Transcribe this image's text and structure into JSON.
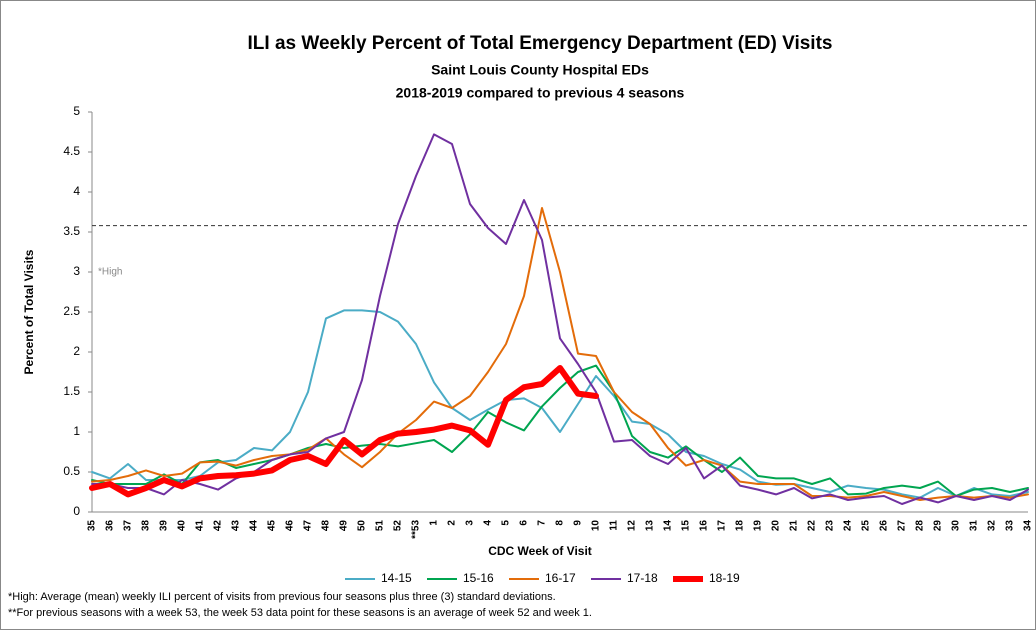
{
  "chart_data": {
    "type": "line",
    "title": "ILI as Weekly Percent of Total Emergency Department (ED) Visits",
    "subtitle": "Saint Louis County Hospital EDs",
    "subtitle2": "2018-2019 compared to previous 4 seasons",
    "y_label": "Percent of Total Visits",
    "x_label": "CDC Week of Visit",
    "categories": [
      "35",
      "36",
      "37",
      "38",
      "39",
      "40",
      "41",
      "42",
      "43",
      "44",
      "45",
      "46",
      "47",
      "48",
      "49",
      "50",
      "51",
      "52",
      "**53",
      "1",
      "2",
      "3",
      "4",
      "5",
      "6",
      "7",
      "8",
      "9",
      "10",
      "11",
      "12",
      "13",
      "14",
      "15",
      "16",
      "17",
      "18",
      "19",
      "20",
      "21",
      "22",
      "23",
      "24",
      "25",
      "26",
      "27",
      "28",
      "29",
      "30",
      "31",
      "32",
      "33",
      "34"
    ],
    "ylim": [
      0,
      5
    ],
    "yticks": [
      0,
      0.5,
      1,
      1.5,
      2,
      2.5,
      3,
      3.5,
      4,
      4.5,
      5
    ],
    "threshold": 3.58,
    "threshold_label": "*High",
    "series": [
      {
        "name": "14-15",
        "color": "#4bacc6",
        "values": [
          0.5,
          0.42,
          0.6,
          0.4,
          0.4,
          0.4,
          0.45,
          0.62,
          0.65,
          0.8,
          0.77,
          1.0,
          1.5,
          2.42,
          2.52,
          2.52,
          2.5,
          2.38,
          2.1,
          1.62,
          1.3,
          1.15,
          1.28,
          1.4,
          1.42,
          1.3,
          1.0,
          1.35,
          1.7,
          1.45,
          1.13,
          1.1,
          0.97,
          0.75,
          0.7,
          0.6,
          0.53,
          0.38,
          0.34,
          0.35,
          0.3,
          0.25,
          0.33,
          0.3,
          0.28,
          0.22,
          0.18,
          0.3,
          0.2,
          0.3,
          0.22,
          0.2,
          0.25
        ]
      },
      {
        "name": "15-16",
        "color": "#00a550",
        "values": [
          0.4,
          0.35,
          0.35,
          0.35,
          0.47,
          0.35,
          0.62,
          0.65,
          0.55,
          0.6,
          0.65,
          0.72,
          0.8,
          0.85,
          0.8,
          0.83,
          0.85,
          0.82,
          0.86,
          0.9,
          0.75,
          0.97,
          1.25,
          1.12,
          1.02,
          1.32,
          1.55,
          1.75,
          1.83,
          1.5,
          0.95,
          0.75,
          0.68,
          0.82,
          0.65,
          0.5,
          0.68,
          0.45,
          0.42,
          0.42,
          0.35,
          0.42,
          0.22,
          0.23,
          0.3,
          0.33,
          0.3,
          0.38,
          0.2,
          0.28,
          0.3,
          0.25,
          0.3
        ]
      },
      {
        "name": "16-17",
        "color": "#e36c0a",
        "values": [
          0.38,
          0.4,
          0.45,
          0.52,
          0.45,
          0.48,
          0.62,
          0.63,
          0.58,
          0.65,
          0.7,
          0.72,
          0.78,
          0.92,
          0.72,
          0.56,
          0.75,
          0.98,
          1.15,
          1.38,
          1.3,
          1.45,
          1.75,
          2.1,
          2.7,
          3.8,
          3.0,
          1.98,
          1.95,
          1.5,
          1.25,
          1.1,
          0.8,
          0.58,
          0.65,
          0.58,
          0.38,
          0.35,
          0.35,
          0.35,
          0.2,
          0.2,
          0.18,
          0.2,
          0.25,
          0.2,
          0.15,
          0.18,
          0.2,
          0.18,
          0.2,
          0.18,
          0.22
        ]
      },
      {
        "name": "17-18",
        "color": "#7030a0",
        "values": [
          0.35,
          0.35,
          0.3,
          0.3,
          0.22,
          0.4,
          0.35,
          0.28,
          0.42,
          0.5,
          0.65,
          0.72,
          0.75,
          0.92,
          1.0,
          1.65,
          2.7,
          3.6,
          4.2,
          4.72,
          4.6,
          3.85,
          3.55,
          3.35,
          3.9,
          3.4,
          2.17,
          1.85,
          1.5,
          0.88,
          0.9,
          0.7,
          0.6,
          0.8,
          0.42,
          0.58,
          0.33,
          0.28,
          0.22,
          0.3,
          0.17,
          0.22,
          0.15,
          0.18,
          0.2,
          0.1,
          0.18,
          0.12,
          0.2,
          0.15,
          0.2,
          0.15,
          0.28
        ]
      },
      {
        "name": "18-19",
        "color": "#ff0000",
        "values": [
          0.3,
          0.35,
          0.22,
          0.3,
          0.4,
          0.32,
          0.42,
          0.45,
          0.46,
          0.48,
          0.52,
          0.65,
          0.7,
          0.6,
          0.9,
          0.72,
          0.9,
          0.98,
          1.0,
          1.03,
          1.08,
          1.02,
          0.84,
          1.4,
          1.56,
          1.6,
          1.8,
          1.48,
          1.45,
          null,
          null,
          null,
          null,
          null,
          null,
          null,
          null,
          null,
          null,
          null,
          null,
          null,
          null,
          null,
          null,
          null,
          null,
          null,
          null,
          null,
          null,
          null,
          null
        ]
      }
    ],
    "footnotes": [
      "*High:  Average (mean) weekly ILI percent of visits from previous four seasons plus three (3) standard deviations.",
      "**For previous seasons with a week 53, the week 53 data point for these seasons is an average of week 52 and week 1."
    ]
  }
}
